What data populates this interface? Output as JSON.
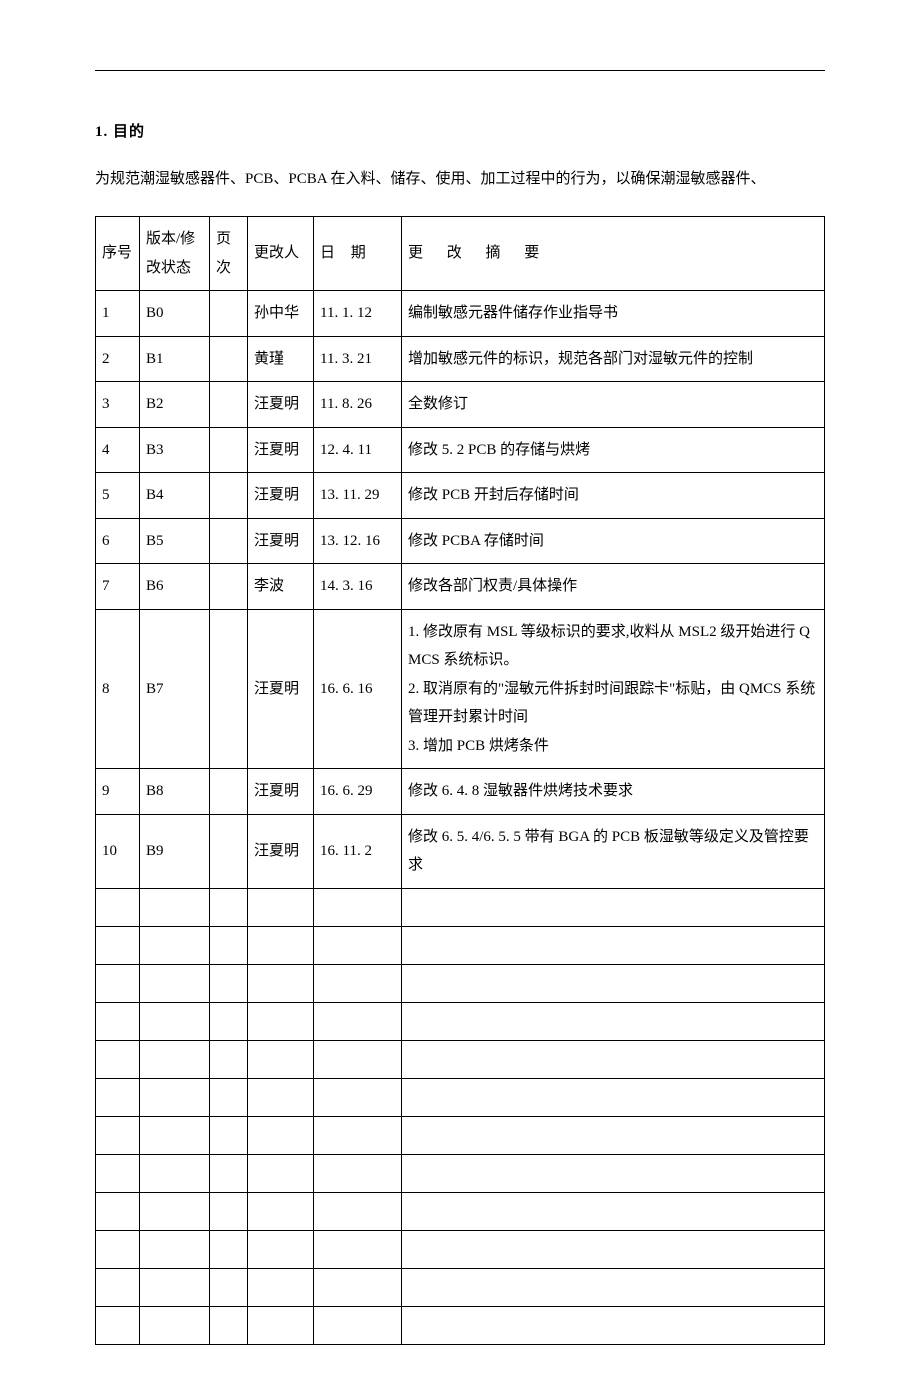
{
  "section_number": "1.",
  "section_title": "目的",
  "intro_text": "为规范潮湿敏感器件、PCB、PCBA 在入料、储存、使用、加工过程中的行为，以确保潮湿敏感器件、",
  "table": {
    "columns": {
      "seq": "序号",
      "version": "版本/修改状态",
      "page": "页次",
      "editor": "更改人",
      "date": "日 期",
      "summary": "更 改 摘 要"
    },
    "rows": [
      {
        "seq": "1",
        "version": "B0",
        "page": "",
        "editor": "孙中华",
        "date": "11. 1. 12",
        "summary": "编制敏感元器件储存作业指导书"
      },
      {
        "seq": "2",
        "version": "B1",
        "page": "",
        "editor": "黄瑾",
        "date": "11. 3. 21",
        "summary": "增加敏感元件的标识，规范各部门对湿敏元件的控制"
      },
      {
        "seq": "3",
        "version": "B2",
        "page": "",
        "editor": "汪夏明",
        "date": "11. 8. 26",
        "summary": "全数修订"
      },
      {
        "seq": "4",
        "version": "B3",
        "page": "",
        "editor": "汪夏明",
        "date": "12. 4. 11",
        "summary": "修改 5. 2  PCB 的存储与烘烤"
      },
      {
        "seq": "5",
        "version": "B4",
        "page": "",
        "editor": "汪夏明",
        "date": "13. 11. 29",
        "summary": "修改 PCB 开封后存储时间"
      },
      {
        "seq": "6",
        "version": "B5",
        "page": "",
        "editor": "汪夏明",
        "date": "13. 12. 16",
        "summary": "修改 PCBA 存储时间"
      },
      {
        "seq": "7",
        "version": "B6",
        "page": "",
        "editor": "李波",
        "date": "14. 3. 16",
        "summary": "修改各部门权责/具体操作"
      },
      {
        "seq": "8",
        "version": "B7",
        "page": "",
        "editor": "汪夏明",
        "date": "16. 6. 16",
        "summary": "1. 修改原有 MSL 等级标识的要求,收料从 MSL2 级开始进行 QMCS 系统标识。\n2. 取消原有的\"湿敏元件拆封时间跟踪卡\"标贴，由 QMCS 系统管理开封累计时间\n3. 增加 PCB 烘烤条件"
      },
      {
        "seq": "9",
        "version": "B8",
        "page": "",
        "editor": "汪夏明",
        "date": "16. 6. 29",
        "summary": "修改 6. 4. 8 湿敏器件烘烤技术要求"
      },
      {
        "seq": "10",
        "version": "B9",
        "page": "",
        "editor": "汪夏明",
        "date": "16. 11. 2",
        "summary": "修改 6. 5. 4/6. 5. 5 带有 BGA 的 PCB 板湿敏等级定义及管控要求"
      }
    ],
    "empty_rows": 12
  }
}
